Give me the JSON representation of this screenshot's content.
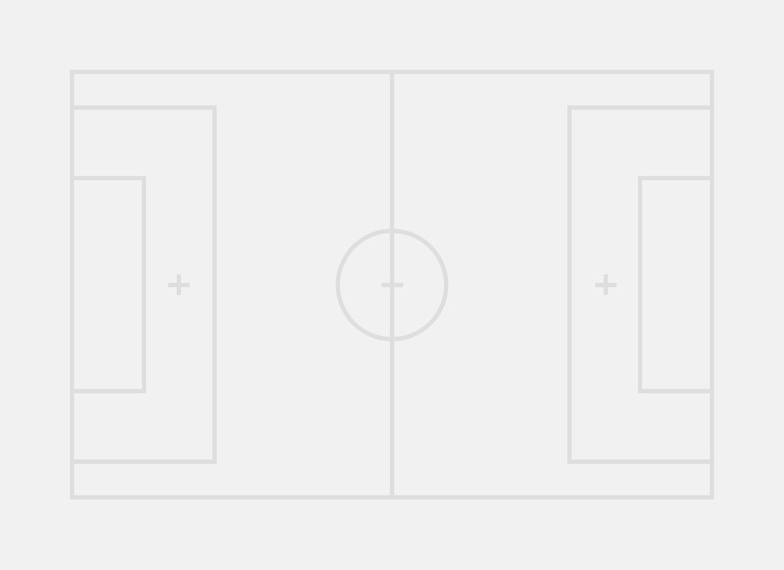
{
  "pitch": {
    "background_color": "#f1f1f1",
    "line_color": "#dedede",
    "elements": [
      "outer-boundary",
      "halfway-line",
      "center-circle",
      "center-mark",
      "left-penalty-area",
      "left-goal-area",
      "left-penalty-mark",
      "right-penalty-area",
      "right-goal-area",
      "right-penalty-mark"
    ]
  }
}
